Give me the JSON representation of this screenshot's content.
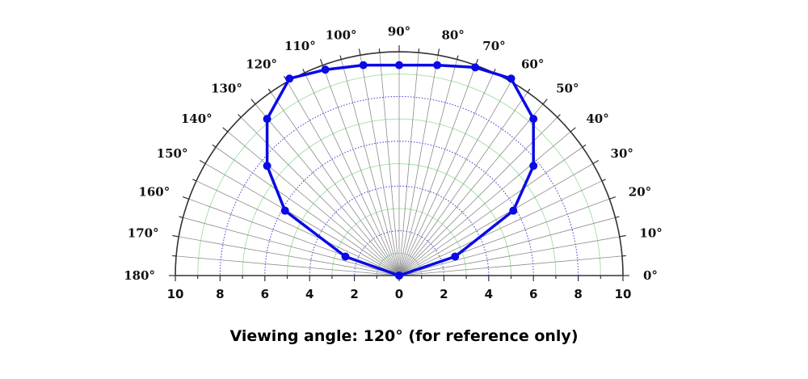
{
  "chart_data": {
    "type": "polar",
    "theta_unit": "deg",
    "theta_range": [
      0,
      180
    ],
    "r_range": [
      0,
      10
    ],
    "radial_ticks": [
      10,
      8,
      6,
      4,
      2,
      0,
      2,
      4,
      6,
      8,
      10
    ],
    "angle_ticks": [
      "0°",
      "10°",
      "20°",
      "30°",
      "40°",
      "50°",
      "60°",
      "70°",
      "80°",
      "90°",
      "100°",
      "110°",
      "120°",
      "130°",
      "140°",
      "150°",
      "160°",
      "170°",
      "180°"
    ],
    "series": [
      {
        "points": [
          {
            "theta": 0,
            "r": 0
          },
          {
            "theta": 30,
            "r": 5
          },
          {
            "theta": 60,
            "r": 10
          },
          {
            "theta": 90,
            "r": 10
          },
          {
            "theta": 120,
            "r": 10
          },
          {
            "theta": 150,
            "r": 5
          },
          {
            "theta": 180,
            "r": 0
          }
        ],
        "markers": [
          {
            "x": 0,
            "y": 0
          },
          {
            "x": 2.5,
            "y": 0.85
          },
          {
            "x": 5.1,
            "y": 2.9
          },
          {
            "x": 6.0,
            "y": 4.9
          },
          {
            "x": 6.0,
            "y": 7.0
          },
          {
            "x": 5.0,
            "y": 8.8
          },
          {
            "x": 3.4,
            "y": 9.3
          },
          {
            "x": 1.7,
            "y": 9.4
          },
          {
            "x": 0,
            "y": 9.4
          },
          {
            "x": -1.6,
            "y": 9.4
          },
          {
            "x": -3.3,
            "y": 9.2
          },
          {
            "x": -4.9,
            "y": 8.8
          },
          {
            "x": -5.9,
            "y": 7.0
          },
          {
            "x": -5.9,
            "y": 4.9
          },
          {
            "x": -5.1,
            "y": 2.9
          },
          {
            "x": -2.4,
            "y": 0.85
          },
          {
            "x": 0,
            "y": 0
          }
        ]
      }
    ],
    "colors": {
      "series": "#0a0ae6",
      "major_grid": "#8c8c8c",
      "dotted_circle": "#3a3ad6",
      "minor_grid": "#9de09d",
      "axis": "#333333"
    },
    "grid": true
  },
  "caption": "Viewing angle:  120° (for reference only)"
}
